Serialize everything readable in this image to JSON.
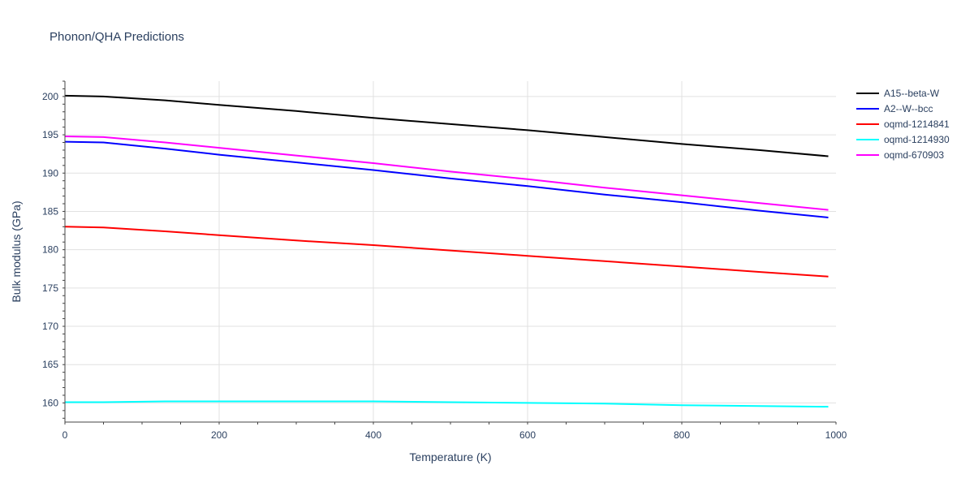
{
  "chart_data": {
    "type": "line",
    "title": "Phonon/QHA Predictions",
    "xlabel": "Temperature (K)",
    "ylabel": "Bulk modulus (GPa)",
    "xlim": [
      0,
      1000
    ],
    "ylim": [
      157.5,
      202
    ],
    "x_ticks": [
      0,
      200,
      400,
      600,
      800,
      1000
    ],
    "y_ticks": [
      160,
      165,
      170,
      175,
      180,
      185,
      190,
      195,
      200
    ],
    "grid": true,
    "legend_position": "top-right",
    "series": [
      {
        "name": "A15--beta-W",
        "color": "#000000",
        "x": [
          0,
          50,
          130,
          200,
          300,
          400,
          500,
          600,
          700,
          800,
          900,
          990
        ],
        "y": [
          200.1,
          200.0,
          199.5,
          198.9,
          198.1,
          197.2,
          196.4,
          195.6,
          194.7,
          193.8,
          193.0,
          192.2
        ]
      },
      {
        "name": "A2--W--bcc",
        "color": "#0000ff",
        "x": [
          0,
          50,
          130,
          200,
          300,
          400,
          500,
          600,
          700,
          800,
          900,
          990
        ],
        "y": [
          194.1,
          194.0,
          193.2,
          192.4,
          191.4,
          190.4,
          189.3,
          188.3,
          187.2,
          186.2,
          185.1,
          184.2
        ]
      },
      {
        "name": "oqmd-1214841",
        "color": "#ff0000",
        "x": [
          0,
          50,
          130,
          200,
          300,
          400,
          500,
          600,
          700,
          800,
          900,
          990
        ],
        "y": [
          183.0,
          182.9,
          182.4,
          181.9,
          181.2,
          180.6,
          179.9,
          179.2,
          178.5,
          177.8,
          177.1,
          176.5
        ]
      },
      {
        "name": "oqmd-1214930",
        "color": "#00ffff",
        "x": [
          0,
          50,
          130,
          200,
          300,
          400,
          500,
          600,
          700,
          800,
          900,
          990
        ],
        "y": [
          160.1,
          160.1,
          160.2,
          160.2,
          160.2,
          160.2,
          160.1,
          160.0,
          159.9,
          159.7,
          159.6,
          159.5
        ]
      },
      {
        "name": "oqmd-670903",
        "color": "#ff00ff",
        "x": [
          0,
          50,
          130,
          200,
          300,
          400,
          500,
          600,
          700,
          800,
          900,
          990
        ],
        "y": [
          194.8,
          194.7,
          194.0,
          193.3,
          192.3,
          191.3,
          190.2,
          189.2,
          188.1,
          187.1,
          186.1,
          185.2
        ]
      }
    ]
  }
}
